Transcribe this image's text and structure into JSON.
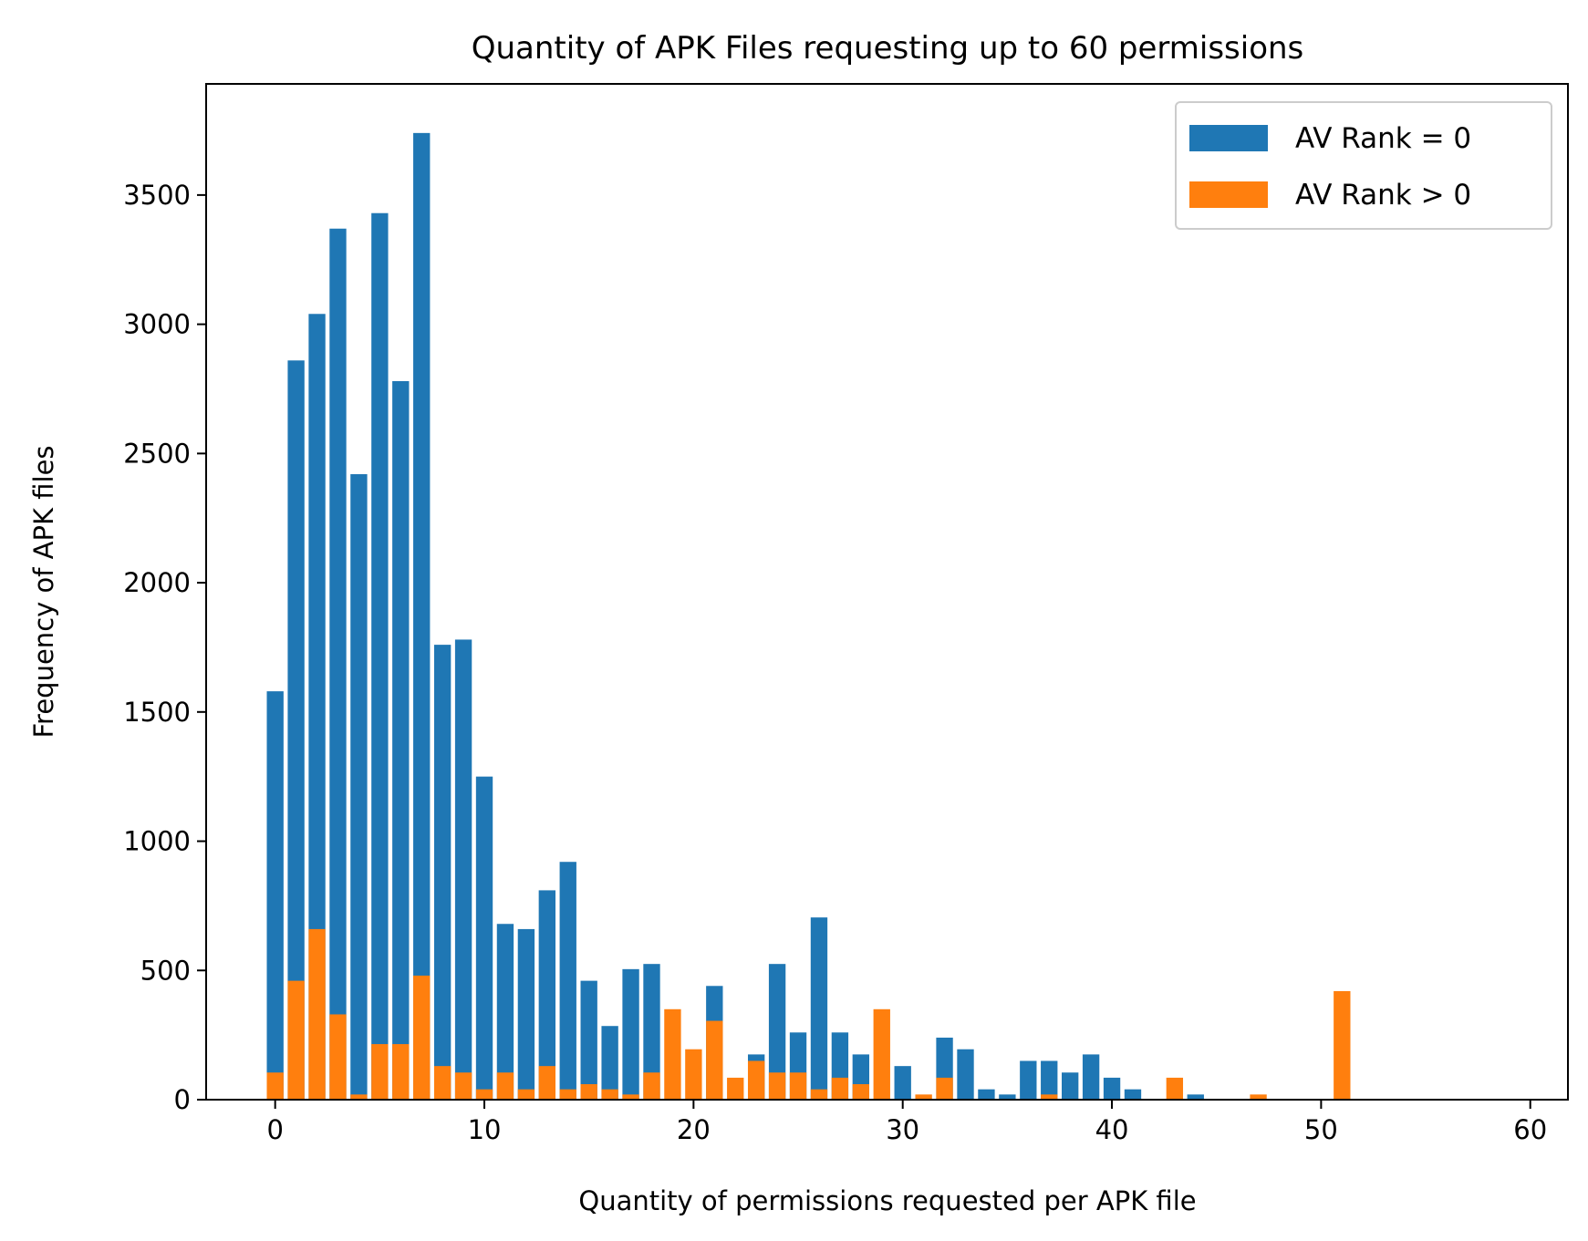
{
  "chart_data": {
    "type": "bar",
    "title": "Quantity of APK Files requesting up to 60 permissions",
    "xlabel": "Quantity of permissions requested per APK file",
    "ylabel": "Frequency of APK files",
    "xlim": [
      -3.3,
      61.8
    ],
    "ylim": [
      0,
      3930
    ],
    "xticks": [
      0,
      10,
      20,
      30,
      40,
      50,
      60
    ],
    "yticks": [
      0,
      500,
      1000,
      1500,
      2000,
      2500,
      3000,
      3500
    ],
    "grid": false,
    "legend_position": "top-right",
    "x": [
      0,
      1,
      2,
      3,
      4,
      5,
      6,
      7,
      8,
      9,
      10,
      11,
      12,
      13,
      14,
      15,
      16,
      17,
      18,
      19,
      20,
      21,
      22,
      23,
      24,
      25,
      26,
      27,
      28,
      29,
      30,
      31,
      32,
      33,
      34,
      35,
      36,
      37,
      38,
      39,
      40,
      41,
      42,
      43,
      44,
      45,
      46,
      47,
      48,
      49,
      50,
      51
    ],
    "series": [
      {
        "name": "AV Rank = 0",
        "color": "#1f77b4",
        "values": [
          1580,
          2860,
          3040,
          3370,
          2420,
          3430,
          2780,
          3740,
          1760,
          1780,
          1250,
          680,
          660,
          810,
          920,
          460,
          285,
          505,
          525,
          0,
          0,
          440,
          0,
          175,
          525,
          260,
          705,
          260,
          175,
          0,
          130,
          0,
          240,
          195,
          40,
          20,
          150,
          150,
          105,
          175,
          85,
          40,
          0,
          0,
          20,
          0,
          0,
          0,
          0,
          0,
          0,
          0
        ]
      },
      {
        "name": "AV Rank > 0",
        "color": "#ff7f0e",
        "values": [
          105,
          460,
          660,
          330,
          20,
          215,
          215,
          480,
          130,
          105,
          40,
          105,
          40,
          130,
          40,
          60,
          40,
          20,
          105,
          350,
          195,
          305,
          85,
          150,
          105,
          105,
          40,
          85,
          60,
          350,
          0,
          20,
          85,
          0,
          0,
          0,
          0,
          20,
          0,
          0,
          0,
          0,
          0,
          85,
          0,
          0,
          0,
          20,
          0,
          0,
          0,
          420
        ]
      }
    ]
  }
}
